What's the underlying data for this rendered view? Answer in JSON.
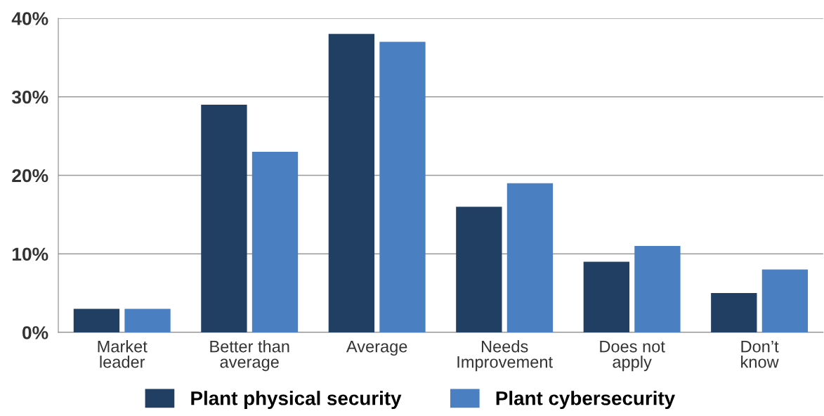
{
  "chart_data": {
    "type": "bar",
    "categories": [
      "Market\nleader",
      "Better than\naverage",
      "Average",
      "Needs\nImprovement",
      "Does not\napply",
      "Don’t\nknow"
    ],
    "series": [
      {
        "name": "Plant physical security",
        "color": "#213f63",
        "values": [
          3,
          29,
          38,
          16,
          9,
          5
        ]
      },
      {
        "name": "Plant cybersecurity",
        "color": "#4a80c2",
        "values": [
          3,
          23,
          37,
          19,
          11,
          8
        ]
      }
    ],
    "ylim": [
      0,
      40
    ],
    "yticks": [
      {
        "value": 0,
        "label": "0%"
      },
      {
        "value": 10,
        "label": "10%"
      },
      {
        "value": 20,
        "label": "20%"
      },
      {
        "value": 30,
        "label": "30%"
      },
      {
        "value": 40,
        "label": "40%"
      }
    ],
    "grid": "y",
    "legend": "bottom"
  }
}
